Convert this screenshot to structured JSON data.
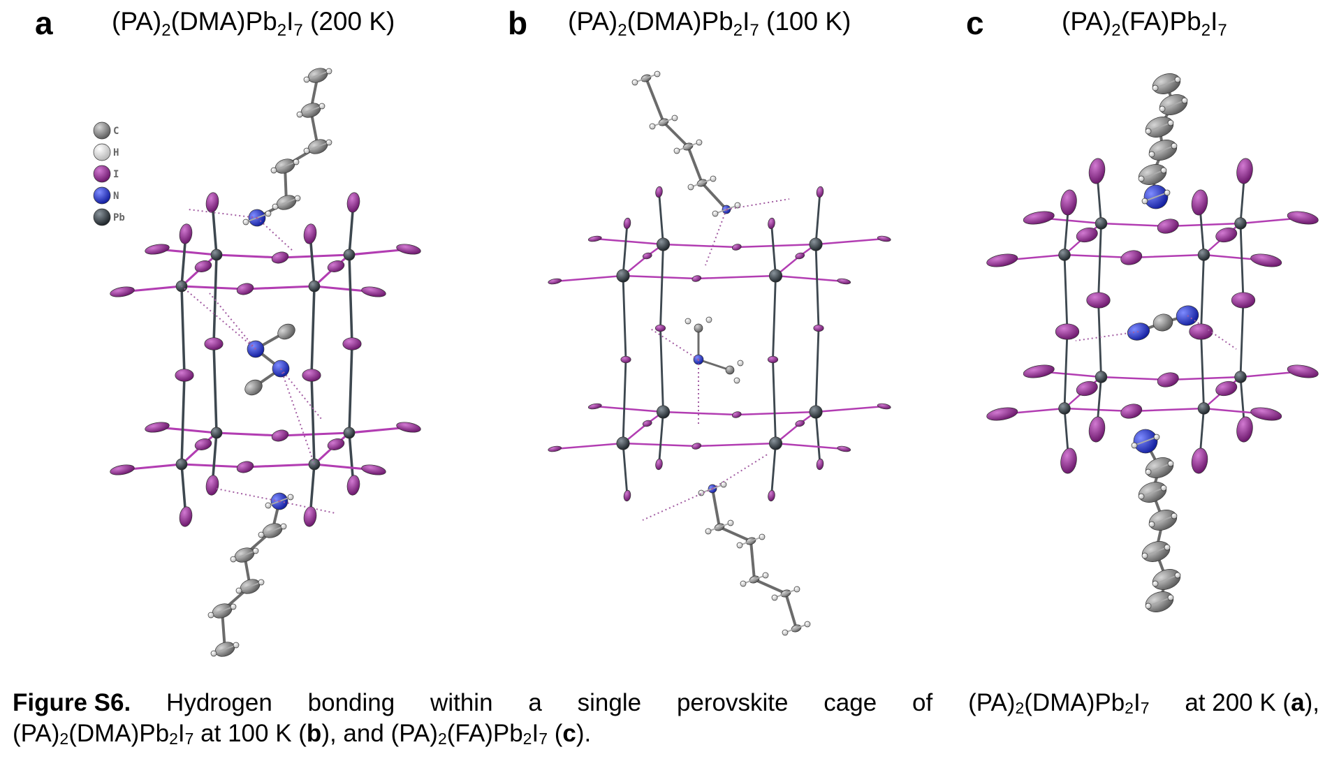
{
  "panels": [
    {
      "letter": "a",
      "title_parts": [
        "(PA)",
        "2",
        "(DMA)Pb",
        "2",
        "I",
        "7",
        " (200 K)"
      ]
    },
    {
      "letter": "b",
      "title_parts": [
        "(PA)",
        "2",
        "(DMA)Pb",
        "2",
        "I",
        "7",
        " (100 K)"
      ]
    },
    {
      "letter": "c",
      "title_parts": [
        "(PA)",
        "2",
        "(FA)Pb",
        "2",
        "I",
        "7",
        ""
      ]
    }
  ],
  "legend": [
    {
      "symbol": "C",
      "color": "#8d8d8d"
    },
    {
      "symbol": "H",
      "color": "#e8e8e8"
    },
    {
      "symbol": "I",
      "color": "#9b2a9b"
    },
    {
      "symbol": "N",
      "color": "#2a3be0"
    },
    {
      "symbol": "Pb",
      "color": "#3d474f"
    }
  ],
  "caption": {
    "label": "Figure S6.",
    "line1_words": [
      "Hydrogen",
      "bonding",
      "within",
      "a",
      "single",
      "perovskite",
      "cage",
      "of"
    ],
    "formula1": [
      "(PA)",
      "2",
      "(DMA)Pb",
      "2",
      "I",
      "7"
    ],
    "temp1": "at 200 K (",
    "ref_a": "a",
    "sep1": "),",
    "formula2": [
      "(PA)",
      "2",
      "(DMA)Pb",
      "2",
      "I",
      "7"
    ],
    "temp2": " at 100 K (",
    "ref_b": "b",
    "sep2": "), and ",
    "formula3": [
      "(PA)",
      "2",
      "(FA)Pb",
      "2",
      "I",
      "7"
    ],
    "open3": " (",
    "ref_c": "c",
    "end": ")."
  },
  "colors": {
    "iodine": "#9b2a9b",
    "iodine_bond": "#b23db2",
    "lead": "#3d474f",
    "nitrogen": "#2a3be0",
    "carbon": "#8d8d8d",
    "hydrogen": "#e8e8e8",
    "hbond": "#a25ca2"
  }
}
